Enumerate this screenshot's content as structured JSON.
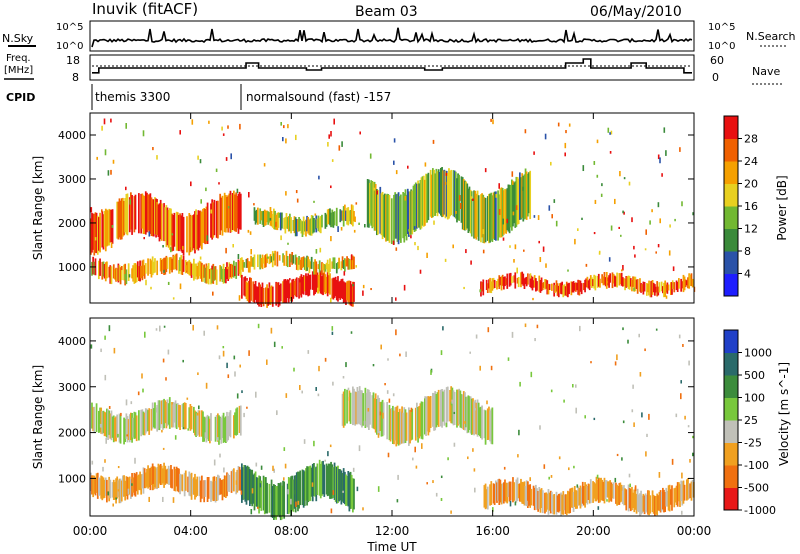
{
  "header": {
    "station": "Inuvik (fitACF)",
    "beam": "Beam 03",
    "date": "06/May/2010"
  },
  "top_panels": {
    "nsky_label": "N.Sky",
    "nsearch_label": "N.Search",
    "nsky_ticks": [
      "10^5",
      "10^0"
    ],
    "nsearch_ticks": [
      "10^5",
      "10^0"
    ],
    "freq_label_1": "Freq.",
    "freq_label_2": "[MHz]",
    "freq_ticks": [
      "18",
      "8"
    ],
    "nave_label": "Nave",
    "nave_ticks": [
      "60",
      "0"
    ],
    "cpid_label": "CPID",
    "cpid_segments": [
      {
        "start_h": 0.0,
        "end_h": 6.0,
        "label": "themis 3300"
      },
      {
        "start_h": 6.0,
        "end_h": 24.0,
        "label": "normalsound (fast) -157"
      }
    ],
    "freq_steps": [
      {
        "h": 0.0,
        "mhz": 10.6
      },
      {
        "h": 0.35,
        "mhz": 13.0
      },
      {
        "h": 6.2,
        "mhz": 15.5
      },
      {
        "h": 6.7,
        "mhz": 13.0
      },
      {
        "h": 8.6,
        "mhz": 12.0
      },
      {
        "h": 9.2,
        "mhz": 13.0
      },
      {
        "h": 13.3,
        "mhz": 12.0
      },
      {
        "h": 14.0,
        "mhz": 13.0
      },
      {
        "h": 18.9,
        "mhz": 15.5
      },
      {
        "h": 19.6,
        "mhz": 17.5
      },
      {
        "h": 19.9,
        "mhz": 13.0
      },
      {
        "h": 21.5,
        "mhz": 15.5
      },
      {
        "h": 22.1,
        "mhz": 13.0
      },
      {
        "h": 23.6,
        "mhz": 10.6
      }
    ]
  },
  "power_panel": {
    "ylabel": "Slant Range [km]",
    "yticks": [
      "1000",
      "2000",
      "3000",
      "4000"
    ],
    "colorbar_label": "Power [dB]",
    "colorbar_ticks": [
      "4",
      "8",
      "12",
      "16",
      "20",
      "24",
      "28"
    ],
    "colors": [
      "#1e1eff",
      "#2a52a8",
      "#3a8a3a",
      "#72b832",
      "#e8d020",
      "#f5a000",
      "#f06000",
      "#e81010"
    ]
  },
  "velocity_panel": {
    "ylabel": "Slant Range [km]",
    "yticks": [
      "1000",
      "2000",
      "3000",
      "4000"
    ],
    "colorbar_label": "Velocity [m s^-1]",
    "colorbar_ticks": [
      "1000",
      "500",
      "100",
      "25",
      "-25",
      "-100",
      "-500",
      "-1000"
    ],
    "colors": [
      "#2040c8",
      "#2a6a6a",
      "#3c8c3c",
      "#78c83c",
      "#c0c0b8",
      "#f0a020",
      "#f07010",
      "#e81818"
    ]
  },
  "xaxis": {
    "label": "Time UT",
    "ticks": [
      "00:00",
      "04:00",
      "08:00",
      "12:00",
      "16:00",
      "20:00",
      "00:00"
    ]
  },
  "chart_data": {
    "type": "heatmap",
    "title": "Inuvik (fitACF)  Beam 03  06/May/2010",
    "xlabel": "Time UT",
    "ylabel": "Slant Range [km]",
    "xlim": [
      0,
      24
    ],
    "ylim": [
      180,
      4500
    ],
    "power_colorbar": {
      "label": "Power [dB]",
      "range": [
        0,
        32
      ],
      "ticks": [
        4,
        8,
        12,
        16,
        20,
        24,
        28
      ]
    },
    "velocity_colorbar": {
      "label": "Velocity [m s^-1]",
      "ticks": [
        1000,
        500,
        100,
        25,
        -25,
        -100,
        -500,
        -1000
      ]
    },
    "power_bands": [
      {
        "t0": 0.0,
        "t1": 6.0,
        "r0": 1500,
        "r1": 2500,
        "power_db": 22
      },
      {
        "t0": 0.0,
        "t1": 6.0,
        "r0": 700,
        "r1": 1200,
        "power_db": 18
      },
      {
        "t0": 6.0,
        "t1": 10.5,
        "r0": 200,
        "r1": 800,
        "power_db": 28
      },
      {
        "t0": 6.0,
        "t1": 10.5,
        "r0": 900,
        "r1": 1300,
        "power_db": 16
      },
      {
        "t0": 6.5,
        "t1": 10.5,
        "r0": 1800,
        "r1": 2300,
        "power_db": 12
      },
      {
        "t0": 11.0,
        "t1": 17.5,
        "r0": 1800,
        "r1": 3000,
        "power_db": 12
      },
      {
        "t0": 15.5,
        "t1": 24.0,
        "r0": 400,
        "r1": 800,
        "power_db": 24
      }
    ],
    "velocity_bands": [
      {
        "t0": 0.0,
        "t1": 6.0,
        "r0": 1900,
        "r1": 2600,
        "velocity": 0
      },
      {
        "t0": 0.0,
        "t1": 6.0,
        "r0": 600,
        "r1": 1200,
        "velocity": -150
      },
      {
        "t0": 6.0,
        "t1": 10.5,
        "r0": 300,
        "r1": 1200,
        "velocity": 80
      },
      {
        "t0": 10.0,
        "t1": 16.0,
        "r0": 1900,
        "r1": 2800,
        "velocity": 0
      },
      {
        "t0": 15.5,
        "t1": 24.0,
        "r0": 300,
        "r1": 900,
        "velocity": -250
      }
    ]
  }
}
